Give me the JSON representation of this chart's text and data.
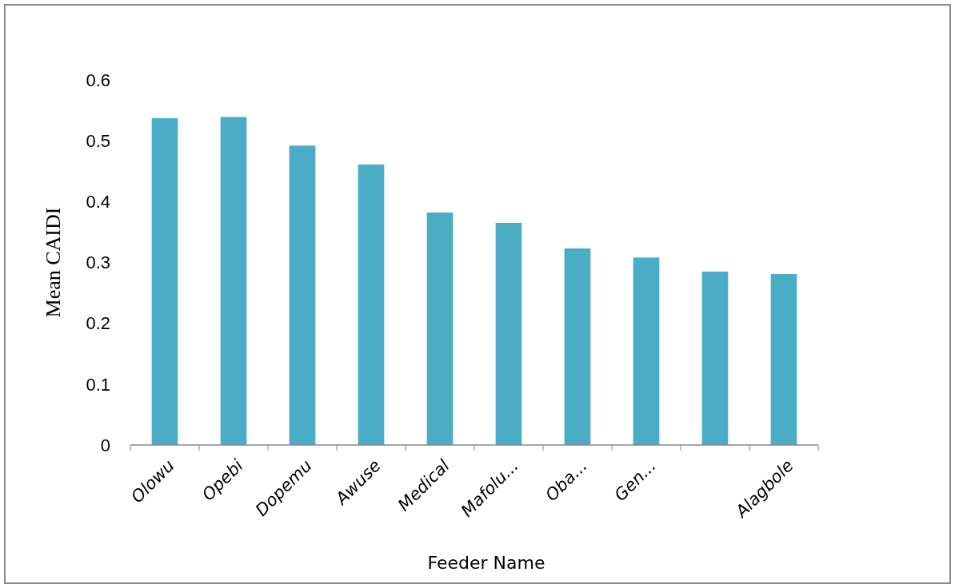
{
  "chart_data": {
    "type": "bar",
    "xlabel": "Feeder Name",
    "ylabel": "Mean CAIDI",
    "categories": [
      "Olowu",
      "Opebi",
      "Dopemu",
      "Awuse",
      "Medical",
      "Mafolu...",
      "Oba...",
      "Gen...",
      null,
      "Alagbole"
    ],
    "values": [
      0.537,
      0.539,
      0.492,
      0.461,
      0.382,
      0.365,
      0.323,
      0.308,
      0.285,
      0.281
    ],
    "color": "#4bacc6",
    "ylim": [
      0,
      0.6
    ],
    "yticks": [
      0,
      0.1,
      0.2,
      0.3,
      0.4,
      0.5,
      0.6
    ],
    "grid": false
  }
}
